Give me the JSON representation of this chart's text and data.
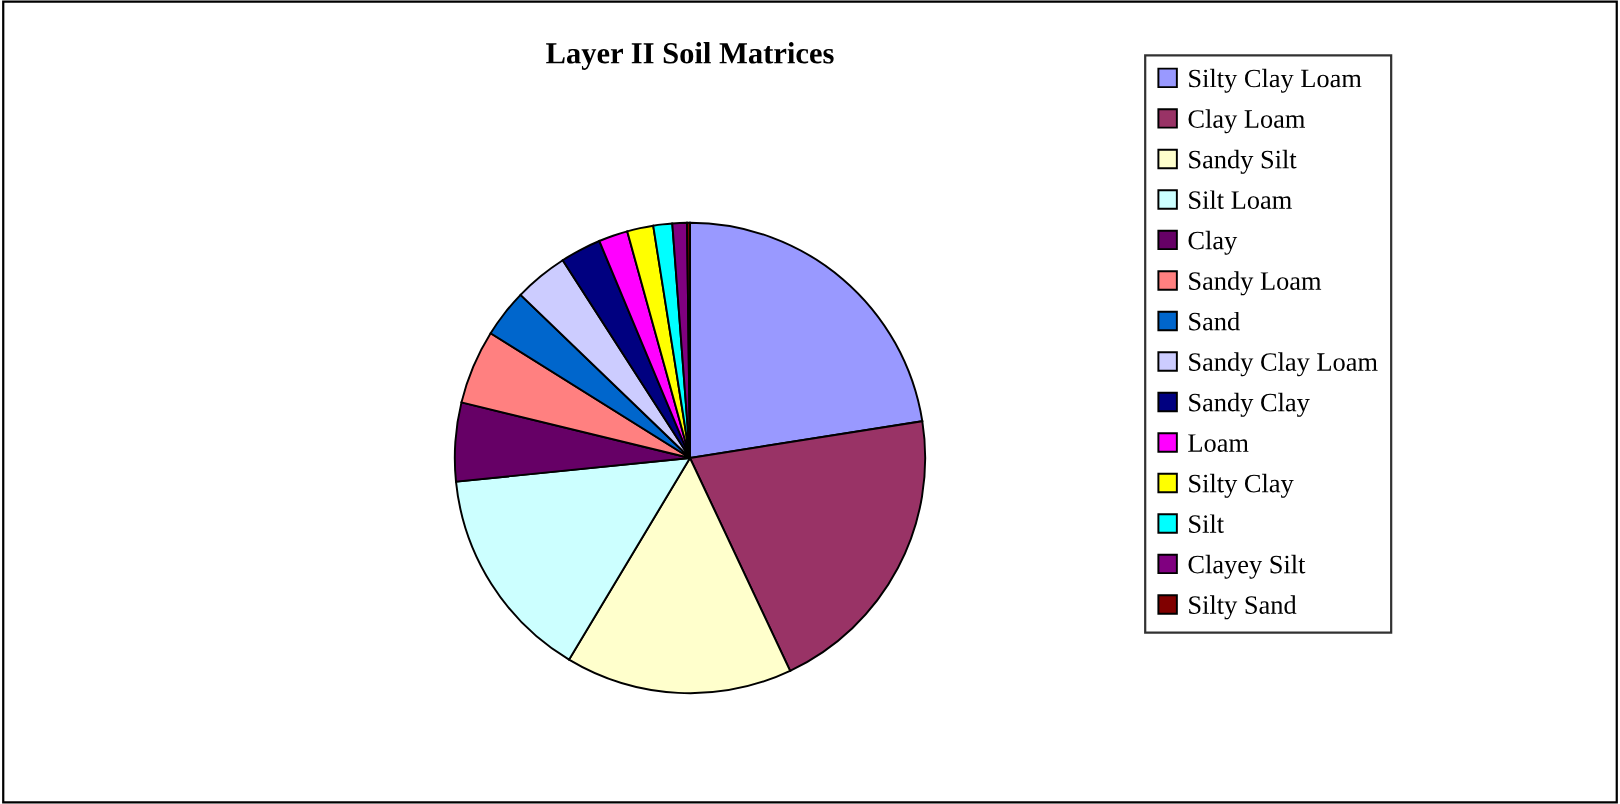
{
  "chart_data": {
    "type": "pie",
    "title": "Layer II Soil Matrices",
    "categories": [
      "Silty Clay Loam",
      "Clay Loam",
      "Sandy Silt",
      "Silt Loam",
      "Clay",
      "Sandy Loam",
      "Sand",
      "Sandy Clay Loam",
      "Sandy Clay",
      "Loam",
      "Silty Clay",
      "Silt",
      "Clayey Silt",
      "Silty Sand"
    ],
    "values": [
      22.5,
      20.5,
      15.6,
      14.8,
      5.4,
      5.1,
      3.3,
      3.7,
      2.8,
      2.0,
      1.8,
      1.3,
      1.0,
      0.2
    ],
    "colors": [
      "#9999ff",
      "#993366",
      "#ffffcc",
      "#ccffff",
      "#660066",
      "#ff8080",
      "#0066cc",
      "#ccccff",
      "#000080",
      "#ff00ff",
      "#ffff00",
      "#00ffff",
      "#800080",
      "#800000"
    ],
    "legend": "right"
  }
}
